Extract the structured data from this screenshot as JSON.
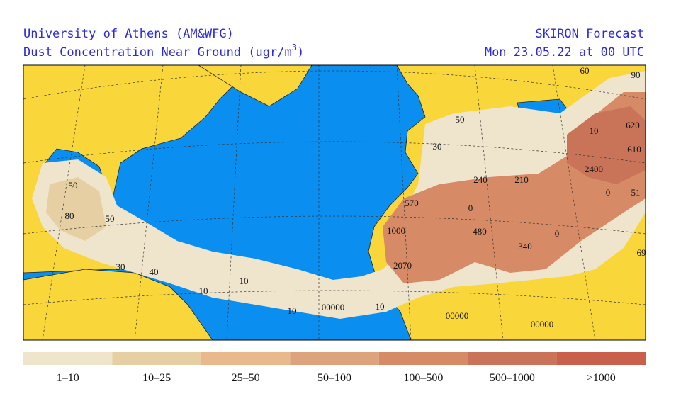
{
  "header": {
    "left_line1": "University of Athens (AM&WFG)",
    "left_line2": "Dust Concentration Near Ground (ugr/m",
    "left_line2_superscript": "3",
    "left_line2_end": ")",
    "right_line1": "SKIRON Forecast",
    "right_line2": "Mon 23.05.22 at 00 UTC"
  },
  "map": {
    "labels": [
      "60",
      "90",
      "50",
      "10",
      "620",
      "30",
      "610",
      "2400",
      "240",
      "210",
      "0",
      "51",
      "570",
      "0",
      "50",
      "80",
      "50",
      "1000",
      "480",
      "340",
      "0",
      "2070",
      "69",
      "30",
      "40",
      "10",
      "10",
      "10",
      "00000",
      "10",
      "00000",
      "00000"
    ]
  },
  "legend": [
    {
      "label": "1–10",
      "color": "#efe4cc"
    },
    {
      "label": "10–25",
      "color": "#e6d0a3"
    },
    {
      "label": "25–50",
      "color": "#e9b98d"
    },
    {
      "label": "50–100",
      "color": "#dca37c"
    },
    {
      "label": "100–500",
      "color": "#d68b66"
    },
    {
      "label": "500–1000",
      "color": "#c97459"
    },
    {
      "label": ">1000",
      "color": "#c8604c"
    }
  ]
}
